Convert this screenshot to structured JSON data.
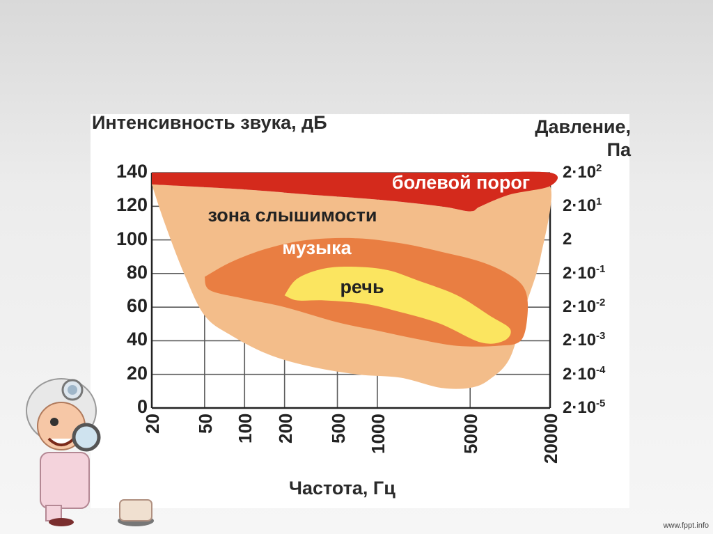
{
  "chart_data": {
    "type": "area",
    "ylabel": "Интенсивность звука, дБ",
    "y2label_line1": "Давление,",
    "y2label_line2": "Па",
    "xlabel": "Частота, Гц",
    "x_scale": "log",
    "xlim": [
      20,
      20000
    ],
    "ylim": [
      0,
      140
    ],
    "x_ticks": [
      20,
      50,
      100,
      200,
      500,
      1000,
      5000,
      20000
    ],
    "x_tick_labels": [
      "20",
      "50",
      "100",
      "200",
      "500",
      "1000",
      "5000",
      "20000"
    ],
    "y_ticks": [
      0,
      20,
      40,
      60,
      80,
      100,
      120,
      140
    ],
    "y_tick_labels": [
      "0",
      "20",
      "40",
      "60",
      "80",
      "100",
      "120",
      "140"
    ],
    "pressure_ticks": [
      {
        "base": "2·10",
        "exp": "-5"
      },
      {
        "base": "2·10",
        "exp": "-4"
      },
      {
        "base": "2·10",
        "exp": "-3"
      },
      {
        "base": "2·10",
        "exp": "-2"
      },
      {
        "base": "2·10",
        "exp": "-1"
      },
      {
        "base": "2",
        "exp": ""
      },
      {
        "base": "2·10",
        "exp": "1"
      },
      {
        "base": "2·10",
        "exp": "2"
      }
    ],
    "grid": true,
    "regions": [
      {
        "name": "болевой порог",
        "color": "#d42a1c",
        "boundary": [
          [
            20,
            140
          ],
          [
            1000,
            140
          ],
          [
            5000,
            140
          ],
          [
            20000,
            140
          ],
          [
            20000,
            132
          ],
          [
            10000,
            127
          ],
          [
            6000,
            120
          ],
          [
            5000,
            117
          ],
          [
            3000,
            120
          ],
          [
            1000,
            124
          ],
          [
            300,
            127
          ],
          [
            100,
            130
          ],
          [
            20,
            133
          ]
        ]
      },
      {
        "name": "зона слышимости",
        "color": "#f3bd8a",
        "boundary": [
          [
            20,
            133
          ],
          [
            100,
            130
          ],
          [
            300,
            127
          ],
          [
            1000,
            124
          ],
          [
            3000,
            120
          ],
          [
            5000,
            117
          ],
          [
            6000,
            120
          ],
          [
            10000,
            127
          ],
          [
            20000,
            132
          ],
          [
            17000,
            90
          ],
          [
            13000,
            60
          ],
          [
            10000,
            30
          ],
          [
            7000,
            17
          ],
          [
            5000,
            12
          ],
          [
            3000,
            12
          ],
          [
            1500,
            18
          ],
          [
            700,
            20
          ],
          [
            300,
            25
          ],
          [
            150,
            32
          ],
          [
            80,
            43
          ],
          [
            50,
            55
          ],
          [
            35,
            80
          ],
          [
            25,
            110
          ],
          [
            20,
            133
          ]
        ]
      },
      {
        "name": "музыка",
        "color": "#e97e42",
        "boundary": [
          [
            50,
            78
          ],
          [
            80,
            87
          ],
          [
            150,
            95
          ],
          [
            300,
            100
          ],
          [
            700,
            101
          ],
          [
            1500,
            98
          ],
          [
            3000,
            93
          ],
          [
            6000,
            87
          ],
          [
            10000,
            79
          ],
          [
            13000,
            70
          ],
          [
            13500,
            55
          ],
          [
            12000,
            40
          ],
          [
            8000,
            37
          ],
          [
            4000,
            37
          ],
          [
            2000,
            41
          ],
          [
            1000,
            46
          ],
          [
            500,
            51
          ],
          [
            200,
            60
          ],
          [
            100,
            65
          ],
          [
            55,
            70
          ],
          [
            50,
            78
          ]
        ]
      },
      {
        "name": "речь",
        "color": "#fbe560",
        "boundary": [
          [
            200,
            67
          ],
          [
            250,
            77
          ],
          [
            400,
            83
          ],
          [
            700,
            84
          ],
          [
            1200,
            82
          ],
          [
            2000,
            76
          ],
          [
            4000,
            67
          ],
          [
            7000,
            55
          ],
          [
            10000,
            47
          ],
          [
            9000,
            40
          ],
          [
            6000,
            39
          ],
          [
            3000,
            50
          ],
          [
            1500,
            57
          ],
          [
            800,
            62
          ],
          [
            400,
            64
          ],
          [
            250,
            64
          ],
          [
            200,
            67
          ]
        ]
      }
    ],
    "region_labels": [
      "болевой порог",
      "зона слышимости",
      "музыка",
      "речь"
    ]
  },
  "watermark": "www.fppt.info",
  "colors": {
    "grid": "#5a5a5a",
    "pain": "#d42a1c",
    "audible": "#f3bd8a",
    "music": "#e97e42",
    "speech": "#fbe560",
    "label_white": "#ffffff",
    "label_dark": "#222222"
  },
  "icons": [
    "doctor-mascot-icon"
  ]
}
